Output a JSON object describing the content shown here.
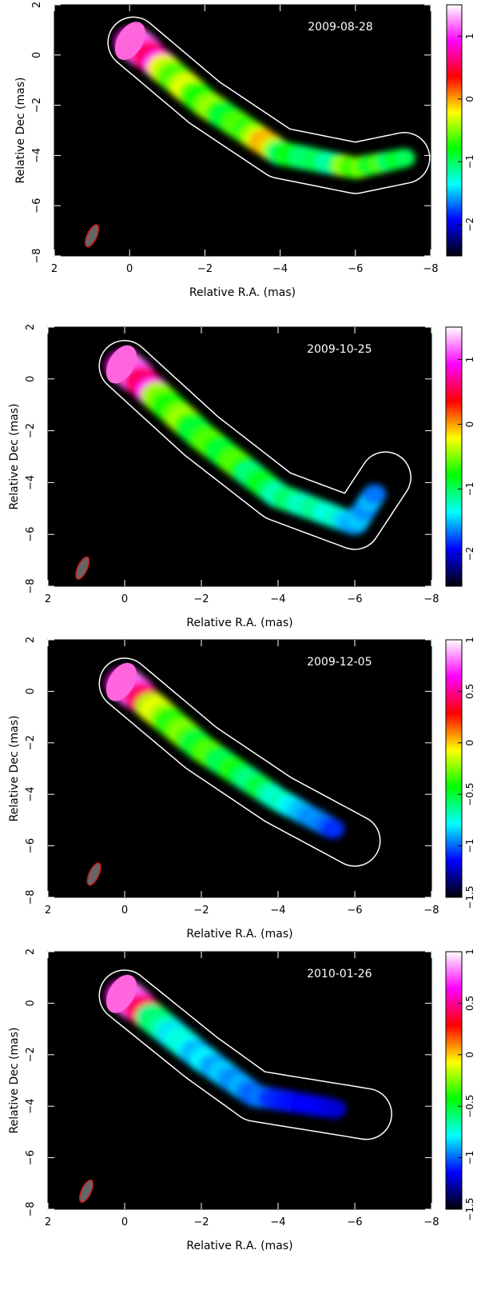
{
  "chart_data": [
    {
      "type": "heatmap",
      "date": "2009-08-28",
      "xlabel": "Relative R.A. (mas)",
      "ylabel": "Relative Dec (mas)",
      "xlim": [
        2,
        -8
      ],
      "ylim": [
        -8,
        2
      ],
      "xticks": [
        "2",
        "0",
        "−2",
        "−4",
        "−6",
        "−8"
      ],
      "yticks": [
        "−8",
        "−6",
        "−4",
        "−2",
        "0",
        "2"
      ],
      "colorbar": {
        "range": [
          -2.5,
          1.5
        ],
        "ticks": [
          "−2",
          "−1",
          "0",
          "1"
        ],
        "tick_values": [
          -2,
          -1,
          0,
          1
        ]
      },
      "jet_ridge": [
        [
          -0.1,
          0.5
        ],
        [
          -2.0,
          -1.9
        ],
        [
          -4.0,
          -3.9
        ],
        [
          -6.0,
          -4.5
        ],
        [
          -7.3,
          -4.1
        ]
      ],
      "beam": {
        "ra": 1.0,
        "dec": -7.2
      }
    },
    {
      "type": "heatmap",
      "date": "2009-10-25",
      "xlabel": "Relative R.A. (mas)",
      "ylabel": "Relative Dec (mas)",
      "xlim": [
        2,
        -8
      ],
      "ylim": [
        -8,
        2
      ],
      "xticks": [
        "2",
        "0",
        "−2",
        "−4",
        "−6",
        "−8"
      ],
      "yticks": [
        "−8",
        "−6",
        "−4",
        "−2",
        "0",
        "2"
      ],
      "colorbar": {
        "range": [
          -2.5,
          1.5
        ],
        "ticks": [
          "−2",
          "−1",
          "0",
          "1"
        ],
        "tick_values": [
          -2,
          -1,
          0,
          1
        ]
      },
      "jet_ridge": [
        [
          0.0,
          0.5
        ],
        [
          -2.0,
          -2.2
        ],
        [
          -4.0,
          -4.5
        ],
        [
          -6.0,
          -5.6
        ],
        [
          -6.8,
          -3.8
        ]
      ],
      "beam": {
        "ra": 1.1,
        "dec": -7.3
      }
    },
    {
      "type": "heatmap",
      "date": "2009-12-05",
      "xlabel": "Relative R.A. (mas)",
      "ylabel": "Relative Dec (mas)",
      "xlim": [
        2,
        -8
      ],
      "ylim": [
        -8,
        2
      ],
      "xticks": [
        "2",
        "0",
        "−2",
        "−4",
        "−6",
        "−8"
      ],
      "yticks": [
        "−8",
        "−6",
        "−4",
        "−2",
        "0",
        "2"
      ],
      "colorbar": {
        "range": [
          -1.5,
          1.0
        ],
        "ticks": [
          "−1.5",
          "−1",
          "−0.5",
          "0",
          "0.5",
          "1"
        ],
        "tick_values": [
          -1.5,
          -1,
          -0.5,
          0,
          0.5,
          1
        ]
      },
      "jet_ridge": [
        [
          0.0,
          0.3
        ],
        [
          -2.0,
          -2.2
        ],
        [
          -4.0,
          -4.2
        ],
        [
          -6.0,
          -5.8
        ]
      ],
      "beam": {
        "ra": 0.8,
        "dec": -7.1
      }
    },
    {
      "type": "heatmap",
      "date": "2010-01-26",
      "xlabel": "Relative R.A. (mas)",
      "ylabel": "Relative Dec (mas)",
      "xlim": [
        2,
        -8
      ],
      "ylim": [
        -8,
        2
      ],
      "xticks": [
        "2",
        "0",
        "−2",
        "−4",
        "−6",
        "−8"
      ],
      "yticks": [
        "−8",
        "−6",
        "−4",
        "−2",
        "0",
        "2"
      ],
      "colorbar": {
        "range": [
          -1.5,
          1.0
        ],
        "ticks": [
          "−1.5",
          "−1",
          "−0.5",
          "0",
          "0.5",
          "1"
        ],
        "tick_values": [
          -1.5,
          -1,
          -0.5,
          0,
          0.5,
          1
        ]
      },
      "jet_ridge": [
        [
          0.0,
          0.3
        ],
        [
          -2.0,
          -2.1
        ],
        [
          -3.4,
          -3.6
        ],
        [
          -6.3,
          -4.3
        ]
      ],
      "beam": {
        "ra": 1.0,
        "dec": -7.3
      }
    }
  ],
  "colors": {
    "background": "#000000",
    "contour": "#ffffff",
    "beam_fill": "#666666",
    "beam_edge": "#cc1111",
    "colormap": [
      "#000008",
      "#0000ff",
      "#00ffff",
      "#00ff00",
      "#ffff00",
      "#ff0000",
      "#ff00ff",
      "#ffffff"
    ]
  }
}
